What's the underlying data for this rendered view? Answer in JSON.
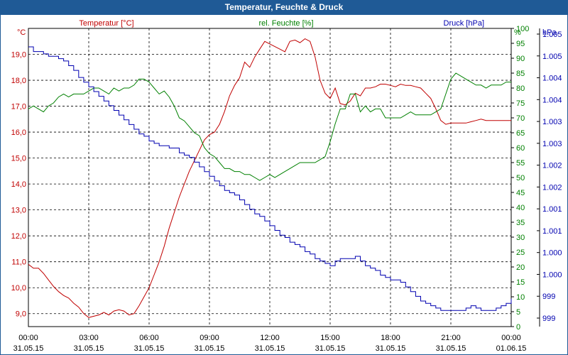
{
  "window": {
    "title": "Temperatur, Feuchte & Druck"
  },
  "colors": {
    "temperature": "#c00000",
    "humidity": "#008000",
    "pressure": "#0000b0",
    "title_bg": "#1f5a96"
  },
  "chart_data": {
    "type": "line",
    "title": "Temperatur, Feuchte & Druck",
    "grid": true,
    "x_ticks": [
      {
        "time": "00:00",
        "date": "31.05.15"
      },
      {
        "time": "03:00",
        "date": "31.05.15"
      },
      {
        "time": "06:00",
        "date": "31.05.15"
      },
      {
        "time": "09:00",
        "date": "31.05.15"
      },
      {
        "time": "12:00",
        "date": "31.05.15"
      },
      {
        "time": "15:00",
        "date": "31.05.15"
      },
      {
        "time": "18:00",
        "date": "31.05.15"
      },
      {
        "time": "21:00",
        "date": "31.05.15"
      },
      {
        "time": "00:00",
        "date": "01.06.15"
      }
    ],
    "axes": {
      "temperature": {
        "unit": "°C",
        "ylim": [
          8.5,
          20.0
        ],
        "ticks": [
          "9,0",
          "10,0",
          "11,0",
          "12,0",
          "13,0",
          "14,0",
          "15,0",
          "16,0",
          "17,0",
          "18,0",
          "19,0"
        ],
        "tick_values": [
          9,
          10,
          11,
          12,
          13,
          14,
          15,
          16,
          17,
          18,
          19
        ]
      },
      "humidity": {
        "unit": "%",
        "ylim": [
          0,
          100
        ],
        "ticks": [
          "0",
          "5",
          "10",
          "15",
          "20",
          "25",
          "30",
          "35",
          "40",
          "45",
          "50",
          "55",
          "60",
          "65",
          "70",
          "75",
          "80",
          "85",
          "90",
          "95",
          "100"
        ],
        "tick_values": [
          0,
          5,
          10,
          15,
          20,
          25,
          30,
          35,
          40,
          45,
          50,
          55,
          60,
          65,
          70,
          75,
          80,
          85,
          90,
          95,
          100
        ]
      },
      "pressure": {
        "unit": "hPa",
        "ticks": [
          "999",
          "999",
          "1.000",
          "1.000",
          "1.001",
          "1.001",
          "1.002",
          "1.002",
          "1.003",
          "1.003",
          "1.004",
          "1.004",
          "1.005",
          "1.005"
        ]
      }
    },
    "series": [
      {
        "name": "Temperatur [°C]",
        "axis": "temperature",
        "x": [
          0,
          0.25,
          0.5,
          0.75,
          1.0,
          1.25,
          1.5,
          1.75,
          2.0,
          2.25,
          2.5,
          2.75,
          3.0,
          3.25,
          3.5,
          3.75,
          4.0,
          4.25,
          4.5,
          4.75,
          5.0,
          5.25,
          5.5,
          5.75,
          6.0,
          6.25,
          6.5,
          6.75,
          7.0,
          7.25,
          7.5,
          7.75,
          8.0,
          8.25,
          8.5,
          8.75,
          9.0,
          9.25,
          9.5,
          9.75,
          10.0,
          10.25,
          10.5,
          10.75,
          11.0,
          11.25,
          11.5,
          11.75,
          12.0,
          12.25,
          12.5,
          12.75,
          13.0,
          13.25,
          13.5,
          13.75,
          14.0,
          14.25,
          14.5,
          14.75,
          15.0,
          15.25,
          15.5,
          15.75,
          16.0,
          16.25,
          16.5,
          16.75,
          17.0,
          17.25,
          17.5,
          17.75,
          18.0,
          18.25,
          18.5,
          18.75,
          19.0,
          19.25,
          19.5,
          19.75,
          20.0,
          20.25,
          20.5,
          20.75,
          21.0,
          21.25,
          21.5,
          21.75,
          22.0,
          22.25,
          22.5,
          22.75,
          23.0,
          23.25,
          23.5,
          23.75,
          24.0
        ],
        "values": [
          10.9,
          10.75,
          10.75,
          10.55,
          10.3,
          10.05,
          9.85,
          9.7,
          9.6,
          9.4,
          9.25,
          9.0,
          8.85,
          8.9,
          8.95,
          9.05,
          8.95,
          9.1,
          9.15,
          9.1,
          8.95,
          9.0,
          9.3,
          9.65,
          10.0,
          10.5,
          11.0,
          11.6,
          12.3,
          12.9,
          13.5,
          14.0,
          14.5,
          14.9,
          15.3,
          15.7,
          15.9,
          16.0,
          16.3,
          16.8,
          17.4,
          17.8,
          18.1,
          18.7,
          18.5,
          18.9,
          19.2,
          19.5,
          19.4,
          19.3,
          19.2,
          19.1,
          19.5,
          19.55,
          19.45,
          19.6,
          19.5,
          18.9,
          18.0,
          17.5,
          17.3,
          17.7,
          17.1,
          17.05,
          17.2,
          17.5,
          17.4,
          17.7,
          17.7,
          17.75,
          17.85,
          17.85,
          17.8,
          17.75,
          17.85,
          17.8,
          17.8,
          17.75,
          17.7,
          17.5,
          17.3,
          16.9,
          16.45,
          16.3,
          16.35,
          16.35,
          16.35,
          16.35,
          16.4,
          16.45,
          16.5,
          16.45,
          16.45,
          16.45,
          16.45,
          16.45,
          16.45
        ]
      },
      {
        "name": "rel. Feuchte [%]",
        "axis": "humidity",
        "x": [
          0,
          0.25,
          0.5,
          0.75,
          1.0,
          1.25,
          1.5,
          1.75,
          2.0,
          2.25,
          2.5,
          2.75,
          3.0,
          3.25,
          3.5,
          3.75,
          4.0,
          4.25,
          4.5,
          4.75,
          5.0,
          5.25,
          5.5,
          5.75,
          6.0,
          6.25,
          6.5,
          6.75,
          7.0,
          7.25,
          7.5,
          7.75,
          8.0,
          8.25,
          8.5,
          8.75,
          9.0,
          9.25,
          9.5,
          9.75,
          10.0,
          10.25,
          10.5,
          10.75,
          11.0,
          11.25,
          11.5,
          11.75,
          12.0,
          12.25,
          12.5,
          12.75,
          13.0,
          13.25,
          13.5,
          13.75,
          14.0,
          14.25,
          14.5,
          14.75,
          15.0,
          15.25,
          15.5,
          15.75,
          16.0,
          16.25,
          16.5,
          16.75,
          17.0,
          17.25,
          17.5,
          17.75,
          18.0,
          18.25,
          18.5,
          18.75,
          19.0,
          19.25,
          19.5,
          19.75,
          20.0,
          20.25,
          20.5,
          20.75,
          21.0,
          21.25,
          21.5,
          21.75,
          22.0,
          22.25,
          22.5,
          22.75,
          23.0,
          23.25,
          23.5,
          23.75,
          24.0
        ],
        "values": [
          73,
          74,
          73,
          72,
          74,
          75,
          77,
          78,
          77,
          78,
          78,
          78,
          79,
          80,
          80,
          79,
          78,
          80,
          79,
          80,
          80,
          81,
          83,
          83,
          82,
          80,
          78,
          79,
          77,
          74,
          70,
          69,
          67,
          65,
          64,
          60,
          58,
          57,
          55,
          53,
          53,
          52,
          52,
          51,
          51,
          50,
          49,
          50,
          51,
          50,
          51,
          52,
          53,
          54,
          55,
          55,
          55,
          55,
          56,
          57,
          62,
          68,
          73,
          73,
          78,
          78,
          72,
          74,
          72,
          73,
          73,
          70,
          70,
          70,
          70,
          71,
          72,
          71,
          71,
          71,
          71,
          72,
          73,
          78,
          83,
          85,
          84,
          83,
          82,
          81,
          81,
          80,
          81,
          81,
          81,
          82,
          82
        ]
      },
      {
        "name": "Druck [hPa]",
        "axis": "pressure",
        "x": [
          0,
          0.25,
          0.5,
          0.75,
          1.0,
          1.25,
          1.5,
          1.75,
          2.0,
          2.25,
          2.5,
          2.75,
          3.0,
          3.25,
          3.5,
          3.75,
          4.0,
          4.25,
          4.5,
          4.75,
          5.0,
          5.25,
          5.5,
          5.75,
          6.0,
          6.25,
          6.5,
          6.75,
          7.0,
          7.25,
          7.5,
          7.75,
          8.0,
          8.25,
          8.5,
          8.75,
          9.0,
          9.25,
          9.5,
          9.75,
          10.0,
          10.25,
          10.5,
          10.75,
          11.0,
          11.25,
          11.5,
          11.75,
          12.0,
          12.25,
          12.5,
          12.75,
          13.0,
          13.25,
          13.5,
          13.75,
          14.0,
          14.25,
          14.5,
          14.75,
          15.0,
          15.25,
          15.5,
          15.75,
          16.0,
          16.25,
          16.5,
          16.75,
          17.0,
          17.25,
          17.5,
          17.75,
          18.0,
          18.25,
          18.5,
          18.75,
          19.0,
          19.25,
          19.5,
          19.75,
          20.0,
          20.25,
          20.5,
          20.75,
          21.0,
          21.25,
          21.5,
          21.75,
          22.0,
          22.25,
          22.5,
          22.75,
          23.0,
          23.25,
          23.5,
          23.75,
          24.0
        ],
        "values": [
          1005.34,
          1005.24,
          1005.24,
          1005.19,
          1005.14,
          1005.14,
          1005.09,
          1005.04,
          1004.94,
          1004.84,
          1004.69,
          1004.59,
          1004.49,
          1004.39,
          1004.29,
          1004.19,
          1004.09,
          1003.99,
          1003.89,
          1003.79,
          1003.69,
          1003.59,
          1003.49,
          1003.44,
          1003.34,
          1003.29,
          1003.24,
          1003.24,
          1003.19,
          1003.19,
          1003.09,
          1003.04,
          1002.99,
          1002.89,
          1002.79,
          1002.69,
          1002.59,
          1002.49,
          1002.39,
          1002.29,
          1002.24,
          1002.19,
          1002.09,
          1001.99,
          1001.89,
          1001.79,
          1001.74,
          1001.64,
          1001.54,
          1001.44,
          1001.34,
          1001.29,
          1001.19,
          1001.14,
          1001.09,
          1000.99,
          1000.94,
          1000.84,
          1000.79,
          1000.74,
          1000.69,
          1000.79,
          1000.84,
          1000.84,
          1000.84,
          1000.89,
          1000.79,
          1000.69,
          1000.64,
          1000.59,
          1000.49,
          1000.44,
          1000.39,
          1000.39,
          1000.34,
          1000.24,
          1000.14,
          1000.04,
          999.94,
          999.89,
          999.84,
          999.79,
          999.74,
          999.74,
          999.74,
          999.74,
          999.74,
          999.79,
          999.84,
          999.79,
          999.74,
          999.74,
          999.74,
          999.79,
          999.84,
          999.89,
          999.99
        ]
      }
    ]
  }
}
